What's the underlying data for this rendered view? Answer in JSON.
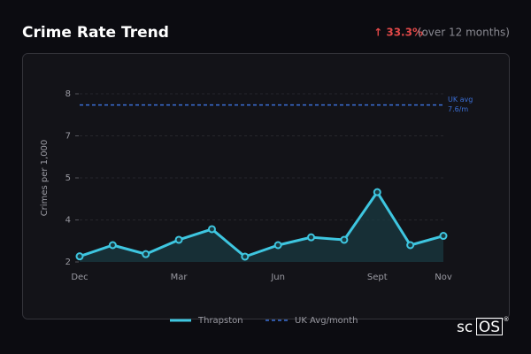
{
  "header": {
    "title": "Crime Rate Trend",
    "change": "↑ 33.3%",
    "change_note": "(over 12 months)"
  },
  "brand": {
    "prefix": "sc",
    "boxed": "OS",
    "mark": "®"
  },
  "chart_data": {
    "type": "line",
    "y_label": "Crimes per 1,000",
    "categories": [
      "Dec",
      null,
      null,
      "Mar",
      null,
      null,
      "Jun",
      null,
      null,
      "Sept",
      null,
      "Nov"
    ],
    "series": [
      {
        "name": "Thrapston",
        "color": "#3ec6e0",
        "values": [
          2.2,
          2.6,
          2.28,
          2.79,
          3.17,
          2.19,
          2.6,
          2.88,
          2.79,
          4.49,
          2.6,
          2.93
        ]
      }
    ],
    "reference_line": {
      "name": "UK Avg/month",
      "color": "#3b6fd6",
      "value": 7.6,
      "annotation": "UK avg",
      "value_label": "7.6/m"
    },
    "ylim": [
      2,
      8
    ],
    "yticks": [
      2,
      {
        "value": 3.5,
        "label": "4"
      },
      5,
      {
        "value": 6.5,
        "label": "7"
      },
      8
    ],
    "grid": true
  }
}
